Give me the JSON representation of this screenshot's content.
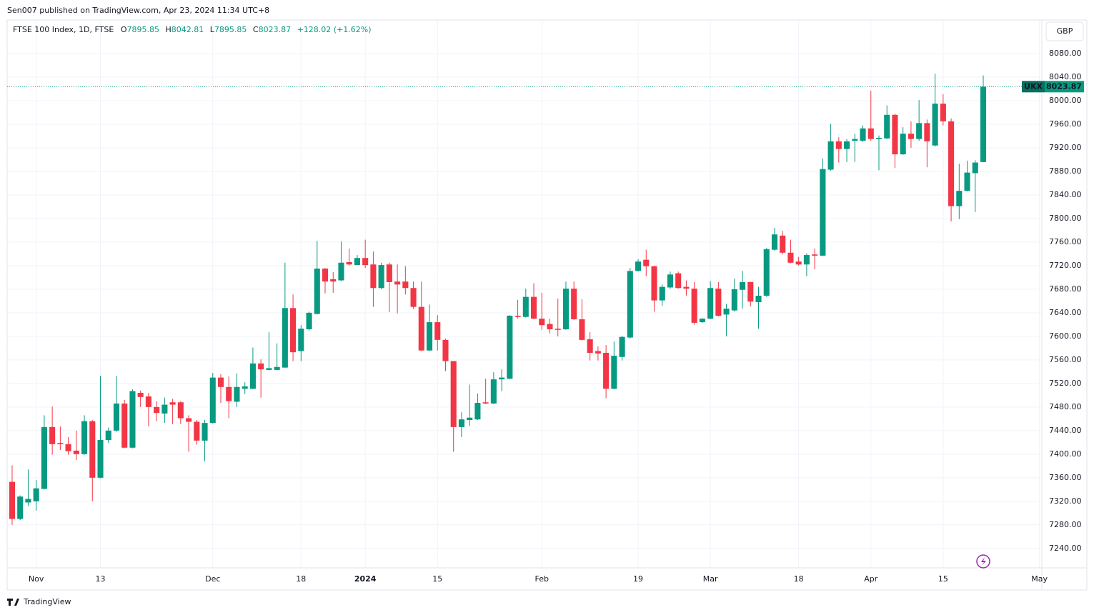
{
  "header": {
    "publisher": "Sen007 published on TradingView.com, Apr 23, 2024 11:34 UTC+8"
  },
  "footer": {
    "brand": "TradingView"
  },
  "chart_data": {
    "type": "candlestick",
    "symbol": "FTSE 100 Index, 1D, FTSE",
    "ticker": "UKX",
    "currency": "GBP",
    "ohlc_labels": [
      "O",
      "H",
      "L",
      "C"
    ],
    "change_label": "+128.02 (+1.62%)",
    "up_color": "#089981",
    "down_color": "#f23645",
    "grid": true,
    "open": [
      7353,
      7290,
      7318,
      7320,
      7341,
      7446,
      7419,
      7417,
      7406,
      7400,
      7456,
      7360,
      7424,
      7440,
      7486,
      7411,
      7504,
      7498,
      7480,
      7469,
      7488,
      7488,
      7461,
      7455,
      7423,
      7453,
      7530,
      7514,
      7489,
      7511,
      7511,
      7554,
      7543,
      7543,
      7547,
      7648,
      7575,
      7612,
      7638,
      7715,
      7697,
      7695,
      7726,
      7721,
      7733,
      7722,
      7682,
      7722,
      7693,
      7693,
      7682,
      7650,
      7576,
      7624,
      7594,
      7558,
      7446,
      7458,
      7459,
      7488,
      7486,
      7527,
      7528,
      7635,
      7633,
      7667,
      7630,
      7621,
      7613,
      7612,
      7681,
      7629,
      7595,
      7575,
      7572,
      7511,
      7565,
      7598,
      7711,
      7730,
      7719,
      7661,
      7683,
      7707,
      7684,
      7681,
      7624,
      7630,
      7681,
      7637,
      7644,
      7679,
      7692,
      7658,
      7669,
      7747,
      7771,
      7742,
      7727,
      7722,
      7739,
      7737,
      7883,
      7931,
      7918,
      7932,
      7932,
      7953,
      7935,
      7936,
      7976,
      7909,
      7944,
      7935,
      7962,
      7924,
      7995,
      7965,
      7821,
      7847,
      7877,
      7895.85
    ],
    "high": [
      7381,
      7330,
      7374,
      7356,
      7466,
      7481,
      7447,
      7429,
      7440,
      7466,
      7458,
      7533,
      7445,
      7533,
      7492,
      7510,
      7508,
      7504,
      7490,
      7496,
      7494,
      7490,
      7466,
      7458,
      7458,
      7538,
      7536,
      7532,
      7537,
      7522,
      7581,
      7561,
      7607,
      7588,
      7725,
      7671,
      7619,
      7642,
      7762,
      7716,
      7709,
      7761,
      7749,
      7738,
      7764,
      7744,
      7725,
      7725,
      7722,
      7719,
      7693,
      7693,
      7654,
      7636,
      7596,
      7558,
      7471,
      7518,
      7503,
      7528,
      7539,
      7544,
      7636,
      7662,
      7681,
      7690,
      7674,
      7630,
      7664,
      7693,
      7693,
      7663,
      7607,
      7583,
      7585,
      7591,
      7601,
      7716,
      7731,
      7747,
      7720,
      7688,
      7710,
      7710,
      7695,
      7692,
      7631,
      7694,
      7692,
      7655,
      7698,
      7711,
      7693,
      7684,
      7750,
      7784,
      7779,
      7764,
      7735,
      7741,
      7749,
      7902,
      7961,
      7938,
      7935,
      7944,
      7958,
      8017,
      7941,
      7992,
      7978,
      7955,
      7965,
      8001,
      7968,
      8046,
      8011,
      7970,
      7893,
      7898,
      7899,
      8042.81
    ],
    "low": [
      7280,
      7288,
      7312,
      7304,
      7340,
      7399,
      7407,
      7399,
      7390,
      7399,
      7320,
      7359,
      7419,
      7438,
      7410,
      7410,
      7480,
      7447,
      7456,
      7453,
      7451,
      7451,
      7404,
      7416,
      7388,
      7452,
      7487,
      7461,
      7480,
      7502,
      7510,
      7496,
      7542,
      7543,
      7546,
      7558,
      7558,
      7610,
      7637,
      7673,
      7674,
      7694,
      7720,
      7721,
      7716,
      7650,
      7680,
      7641,
      7639,
      7671,
      7647,
      7575,
      7575,
      7576,
      7541,
      7404,
      7429,
      7448,
      7458,
      7485,
      7485,
      7507,
      7527,
      7630,
      7632,
      7629,
      7611,
      7605,
      7600,
      7611,
      7628,
      7593,
      7559,
      7559,
      7495,
      7510,
      7559,
      7596,
      7710,
      7702,
      7642,
      7652,
      7681,
      7681,
      7669,
      7620,
      7623,
      7629,
      7634,
      7600,
      7642,
      7647,
      7651,
      7613,
      7667,
      7745,
      7739,
      7724,
      7720,
      7702,
      7714,
      7736,
      7881,
      7895,
      7896,
      7896,
      7930,
      7932,
      7882,
      7935,
      7886,
      7908,
      7920,
      7932,
      7887,
      7922,
      7958,
      7795,
      7799,
      7846,
      7811,
      7895.85
    ],
    "close": [
      7290,
      7328,
      7324,
      7342,
      7446,
      7417,
      7417,
      7405,
      7400,
      7456,
      7360,
      7424,
      7440,
      7486,
      7411,
      7507,
      7497,
      7480,
      7470,
      7484,
      7484,
      7461,
      7455,
      7423,
      7453,
      7530,
      7514,
      7490,
      7514,
      7515,
      7554,
      7544,
      7546,
      7548,
      7648,
      7573,
      7613,
      7640,
      7715,
      7693,
      7693,
      7725,
      7722,
      7733,
      7721,
      7682,
      7721,
      7692,
      7688,
      7682,
      7650,
      7576,
      7624,
      7594,
      7558,
      7446,
      7459,
      7462,
      7487,
      7486,
      7527,
      7530,
      7635,
      7633,
      7667,
      7630,
      7619,
      7612,
      7611,
      7681,
      7629,
      7594,
      7572,
      7571,
      7511,
      7567,
      7599,
      7711,
      7727,
      7719,
      7661,
      7684,
      7705,
      7682,
      7681,
      7623,
      7630,
      7682,
      7635,
      7647,
      7680,
      7692,
      7659,
      7669,
      7748,
      7773,
      7742,
      7725,
      7722,
      7738,
      7737,
      7884,
      7931,
      7918,
      7931,
      7935,
      7953,
      7935,
      7937,
      7976,
      7909,
      7944,
      7935,
      7962,
      7931,
      7995,
      7965,
      7821,
      7847,
      7878,
      7895,
      8023.87
    ],
    "ylim": [
      7207,
      8137
    ],
    "yticks": [
      {
        "value": 7240,
        "label": "7240.00"
      },
      {
        "value": 7280,
        "label": "7280.00"
      },
      {
        "value": 7320,
        "label": "7320.00"
      },
      {
        "value": 7360,
        "label": "7360.00"
      },
      {
        "value": 7400,
        "label": "7400.00"
      },
      {
        "value": 7440,
        "label": "7440.00"
      },
      {
        "value": 7480,
        "label": "7480.00"
      },
      {
        "value": 7520,
        "label": "7520.00"
      },
      {
        "value": 7560,
        "label": "7560.00"
      },
      {
        "value": 7600,
        "label": "7600.00"
      },
      {
        "value": 7640,
        "label": "7640.00"
      },
      {
        "value": 7680,
        "label": "7680.00"
      },
      {
        "value": 7720,
        "label": "7720.00"
      },
      {
        "value": 7760,
        "label": "7760.00"
      },
      {
        "value": 7800,
        "label": "7800.00"
      },
      {
        "value": 7840,
        "label": "7840.00"
      },
      {
        "value": 7880,
        "label": "7880.00"
      },
      {
        "value": 7920,
        "label": "7920.00"
      },
      {
        "value": 7960,
        "label": "7960.00"
      },
      {
        "value": 8000,
        "label": "8000.00"
      },
      {
        "value": 8040,
        "label": "8040.00"
      },
      {
        "value": 8080,
        "label": "8080.00"
      }
    ],
    "xlim": [
      -0.62,
      128.3
    ],
    "xticks": [
      {
        "value": 3,
        "label": "Nov"
      },
      {
        "value": 11,
        "label": "13"
      },
      {
        "value": 25,
        "label": "Dec"
      },
      {
        "value": 36,
        "label": "18"
      },
      {
        "value": 44,
        "label": "2024"
      },
      {
        "value": 53,
        "label": "15"
      },
      {
        "value": 66,
        "label": "Feb"
      },
      {
        "value": 78,
        "label": "19"
      },
      {
        "value": 87,
        "label": "Mar"
      },
      {
        "value": 98,
        "label": "18"
      },
      {
        "value": 107,
        "label": "Apr"
      },
      {
        "value": 116,
        "label": "15"
      },
      {
        "value": 128,
        "label": "May"
      }
    ]
  }
}
